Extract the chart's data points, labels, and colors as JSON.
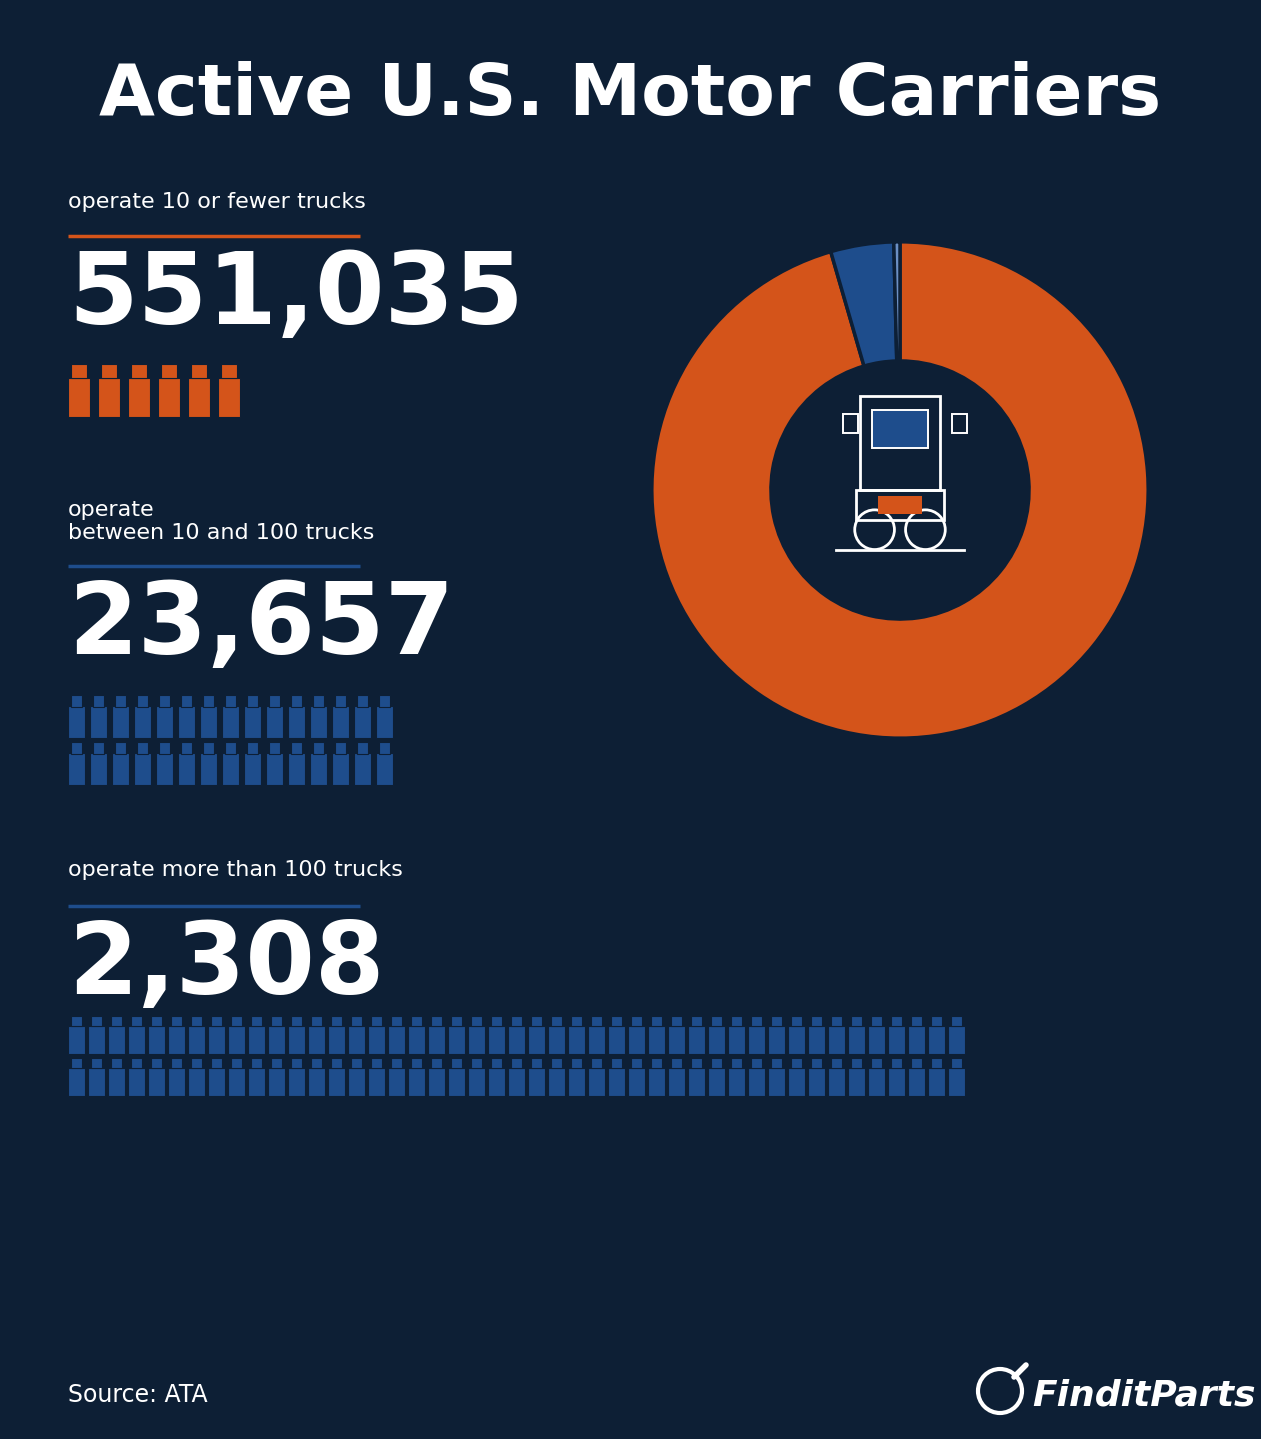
{
  "title": "Active U.S. Motor Carriers",
  "background_color": "#0d1f35",
  "text_color": "#ffffff",
  "orange_color": "#d4541a",
  "blue_color": "#1e4d8c",
  "light_blue_color": "#6b8fc4",
  "source_text": "Source: ATA",
  "logo_text": "FinditParts",
  "sections": [
    {
      "label": "operate 10 or fewer trucks",
      "value": "551,035",
      "numeric": 551035,
      "line_color": "#d4541a",
      "icon_color": "#d4541a",
      "icon_count": 6,
      "icon_rows": 1,
      "icons_per_row": 6
    },
    {
      "label": "operate\nbetween 10 and 100 trucks",
      "value": "23,657",
      "numeric": 23657,
      "line_color": "#1e4d8c",
      "icon_color": "#1e4d8c",
      "icon_count": 30,
      "icon_rows": 2,
      "icons_per_row": 15
    },
    {
      "label": "operate more than 100 trucks",
      "value": "2,308",
      "numeric": 2308,
      "line_color": "#1e4d8c",
      "icon_color": "#1e4d8c",
      "icon_count": 90,
      "icon_rows": 3,
      "icons_per_row": 45
    }
  ],
  "donut": {
    "values": [
      551035,
      23657,
      2308
    ],
    "colors": [
      "#d4541a",
      "#1e4d8c",
      "#6b8fc4"
    ],
    "start_angle": 90
  }
}
